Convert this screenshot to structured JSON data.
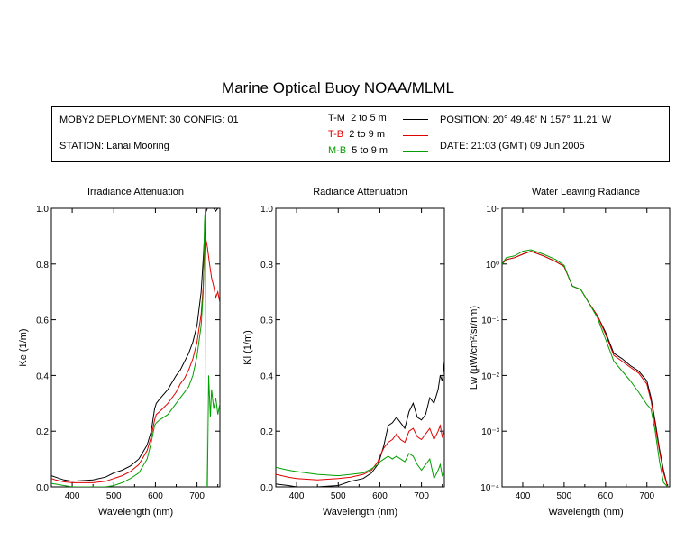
{
  "page_title": "Marine Optical Buoy NOAA/MLML",
  "info": {
    "deployment": "MOBY2 DEPLOYMENT: 30 CONFIG: 01",
    "station": "STATION: Lanai Mooring",
    "position": "POSITION: 20° 49.48' N   157° 11.21' W",
    "date": "DATE: 21:03 (GMT) 09 Jun 2005",
    "legend": [
      {
        "code": "T-M",
        "range": "2 to 5  m",
        "color": "#000000"
      },
      {
        "code": "T-B",
        "range": "2 to 9  m",
        "color": "#e00000"
      },
      {
        "code": "M-B",
        "range": "5 to 9  m",
        "color": "#00a000"
      }
    ]
  },
  "chart_data": [
    {
      "type": "line",
      "title": "Irradiance Attenuation",
      "xlabel": "Wavelength (nm)",
      "ylabel": "Ke  (1/m)",
      "xlim": [
        350,
        755
      ],
      "ylim": [
        0,
        1.0
      ],
      "xticks": [
        400,
        500,
        600,
        700
      ],
      "yticks": [
        "0.0",
        "0.2",
        "0.4",
        "0.6",
        "0.8",
        "1.0"
      ],
      "yticks_values": [
        0,
        0.2,
        0.4,
        0.6,
        0.8,
        1.0
      ],
      "series": [
        {
          "name": "T-M",
          "color": "#000000",
          "x": [
            350,
            360,
            380,
            400,
            450,
            480,
            500,
            520,
            540,
            560,
            580,
            590,
            598,
            602,
            610,
            630,
            650,
            660,
            670,
            680,
            690,
            700,
            710,
            715,
            718,
            720,
            725,
            730,
            735,
            740,
            745,
            750,
            755
          ],
          "y": [
            0.04,
            0.035,
            0.025,
            0.02,
            0.025,
            0.035,
            0.05,
            0.06,
            0.075,
            0.1,
            0.15,
            0.2,
            0.28,
            0.3,
            0.315,
            0.35,
            0.4,
            0.42,
            0.45,
            0.48,
            0.52,
            0.58,
            0.7,
            0.82,
            0.9,
            0.98,
            1.0,
            1.0,
            1.0,
            1.0,
            0.99,
            1.0,
            1.0
          ]
        },
        {
          "name": "T-B",
          "color": "#e00000",
          "x": [
            350,
            360,
            380,
            400,
            450,
            480,
            500,
            520,
            540,
            560,
            580,
            590,
            598,
            602,
            610,
            630,
            650,
            660,
            670,
            680,
            690,
            700,
            710,
            715,
            718,
            720,
            725,
            730,
            735,
            740,
            745,
            750,
            755
          ],
          "y": [
            0.03,
            0.025,
            0.018,
            0.015,
            0.015,
            0.02,
            0.03,
            0.04,
            0.055,
            0.08,
            0.13,
            0.18,
            0.24,
            0.26,
            0.27,
            0.3,
            0.34,
            0.37,
            0.39,
            0.42,
            0.46,
            0.52,
            0.62,
            0.72,
            0.85,
            0.9,
            0.86,
            0.8,
            0.75,
            0.72,
            0.68,
            0.7,
            0.66
          ]
        },
        {
          "name": "M-B",
          "color": "#00a000",
          "x": [
            350,
            360,
            380,
            400,
            450,
            480,
            500,
            520,
            540,
            560,
            580,
            590,
            598,
            602,
            610,
            630,
            650,
            660,
            670,
            680,
            690,
            700,
            710,
            715,
            718,
            720,
            722,
            725,
            728,
            732,
            735,
            740,
            745,
            750,
            755
          ],
          "y": [
            0.012,
            0.01,
            0.005,
            0.0,
            0.0,
            0.0,
            0.005,
            0.015,
            0.03,
            0.05,
            0.1,
            0.16,
            0.22,
            0.23,
            0.24,
            0.26,
            0.3,
            0.32,
            0.34,
            0.36,
            0.4,
            0.47,
            0.58,
            0.7,
            0.95,
            1.0,
            0.0,
            0.0,
            0.4,
            0.25,
            0.35,
            0.28,
            0.32,
            0.26,
            0.3
          ]
        }
      ]
    },
    {
      "type": "line",
      "title": "Radiance Attenuation",
      "xlabel": "Wavelength (nm)",
      "ylabel": "Kl  (1/m)",
      "xlim": [
        350,
        755
      ],
      "ylim": [
        0,
        1.0
      ],
      "xticks": [
        400,
        500,
        600,
        700
      ],
      "yticks": [
        "0.0",
        "0.2",
        "0.4",
        "0.6",
        "0.8",
        "1.0"
      ],
      "yticks_values": [
        0,
        0.2,
        0.4,
        0.6,
        0.8,
        1.0
      ],
      "series": [
        {
          "name": "T-M",
          "color": "#000000",
          "x": [
            350,
            380,
            400,
            450,
            500,
            530,
            560,
            580,
            595,
            600,
            610,
            620,
            630,
            640,
            650,
            660,
            670,
            680,
            690,
            700,
            710,
            720,
            730,
            740,
            745,
            750,
            755
          ],
          "y": [
            0.01,
            0.005,
            0.0,
            0.0,
            0.005,
            0.02,
            0.03,
            0.05,
            0.08,
            0.1,
            0.15,
            0.22,
            0.23,
            0.25,
            0.23,
            0.21,
            0.27,
            0.3,
            0.25,
            0.24,
            0.26,
            0.32,
            0.3,
            0.35,
            0.4,
            0.38,
            0.45
          ]
        },
        {
          "name": "T-B",
          "color": "#e00000",
          "x": [
            350,
            380,
            400,
            450,
            500,
            530,
            560,
            580,
            595,
            600,
            610,
            620,
            630,
            640,
            650,
            660,
            670,
            680,
            690,
            700,
            710,
            720,
            730,
            740,
            745,
            750,
            755
          ],
          "y": [
            0.045,
            0.035,
            0.03,
            0.025,
            0.03,
            0.035,
            0.045,
            0.06,
            0.09,
            0.11,
            0.14,
            0.16,
            0.17,
            0.19,
            0.17,
            0.16,
            0.2,
            0.21,
            0.18,
            0.17,
            0.19,
            0.21,
            0.17,
            0.2,
            0.22,
            0.18,
            0.2
          ]
        },
        {
          "name": "M-B",
          "color": "#00a000",
          "x": [
            350,
            380,
            400,
            450,
            500,
            530,
            560,
            580,
            595,
            600,
            610,
            620,
            630,
            640,
            650,
            660,
            670,
            680,
            690,
            700,
            710,
            720,
            730,
            740,
            745,
            750,
            755
          ],
          "y": [
            0.07,
            0.06,
            0.055,
            0.045,
            0.04,
            0.045,
            0.05,
            0.065,
            0.08,
            0.09,
            0.1,
            0.11,
            0.1,
            0.11,
            0.1,
            0.09,
            0.12,
            0.11,
            0.08,
            0.06,
            0.08,
            0.1,
            0.03,
            0.06,
            0.08,
            0.04,
            0.05
          ]
        }
      ]
    },
    {
      "type": "line",
      "title": "Water Leaving Radiance",
      "xlabel": "Wavelength (nm)",
      "ylabel": "Lw  (µW/cm²/sr/nm)",
      "scale_y": "log",
      "xlim": [
        350,
        755
      ],
      "ylim": [
        0.0001,
        10
      ],
      "xticks": [
        400,
        500,
        600,
        700
      ],
      "yticks": [
        "10⁻⁴",
        "10⁻³",
        "10⁻²",
        "10⁻¹",
        "10⁰",
        "10¹"
      ],
      "yticks_values": [
        0.0001,
        0.001,
        0.01,
        0.1,
        1,
        10
      ],
      "series": [
        {
          "name": "T-M",
          "color": "#000000",
          "x": [
            350,
            360,
            380,
            400,
            420,
            450,
            480,
            500,
            510,
            520,
            540,
            560,
            580,
            600,
            620,
            640,
            660,
            680,
            700,
            710,
            720,
            730,
            740,
            750
          ],
          "y": [
            1.0,
            1.2,
            1.3,
            1.5,
            1.7,
            1.4,
            1.1,
            0.9,
            0.6,
            0.4,
            0.35,
            0.2,
            0.12,
            0.06,
            0.025,
            0.02,
            0.015,
            0.012,
            0.008,
            0.004,
            0.0015,
            0.0005,
            0.0002,
            0.0001
          ]
        },
        {
          "name": "T-B",
          "color": "#e00000",
          "x": [
            350,
            360,
            380,
            400,
            420,
            450,
            480,
            500,
            510,
            520,
            540,
            560,
            580,
            600,
            620,
            640,
            660,
            680,
            700,
            710,
            720,
            730,
            740,
            750
          ],
          "y": [
            1.0,
            1.2,
            1.3,
            1.5,
            1.7,
            1.4,
            1.1,
            0.9,
            0.6,
            0.4,
            0.35,
            0.2,
            0.12,
            0.055,
            0.023,
            0.018,
            0.014,
            0.011,
            0.007,
            0.0035,
            0.0013,
            0.00045,
            0.00018,
            0.0001
          ]
        },
        {
          "name": "M-B",
          "color": "#00a000",
          "x": [
            350,
            360,
            380,
            400,
            420,
            450,
            480,
            500,
            510,
            520,
            540,
            560,
            580,
            600,
            620,
            640,
            660,
            680,
            700,
            710,
            720,
            730,
            740,
            750
          ],
          "y": [
            1.0,
            1.3,
            1.4,
            1.7,
            1.8,
            1.5,
            1.2,
            0.95,
            0.6,
            0.4,
            0.35,
            0.2,
            0.11,
            0.045,
            0.018,
            0.012,
            0.008,
            0.005,
            0.003,
            0.0025,
            0.001,
            0.0003,
            0.00012,
            0.0001
          ]
        }
      ]
    }
  ]
}
